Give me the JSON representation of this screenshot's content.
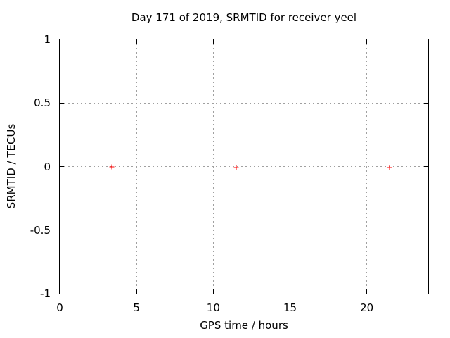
{
  "figure": {
    "background": "#ffffff"
  },
  "chart_data": {
    "type": "scatter",
    "title": "Day 171 of 2019, SRMTID for receiver yeel",
    "xlabel": "GPS time / hours",
    "ylabel": "SRMTID / TECUs",
    "xlim": [
      0,
      24
    ],
    "ylim": [
      -1,
      1
    ],
    "x_ticks": [
      0,
      5,
      10,
      15,
      20
    ],
    "x_tick_labels": [
      "0",
      "5",
      "10",
      "15",
      "20"
    ],
    "y_ticks": [
      1,
      0.5,
      0,
      -0.5,
      -1
    ],
    "y_tick_labels": [
      "1",
      "0.5",
      "0",
      "-0.5",
      "-1"
    ],
    "grid": true,
    "tick_style": "inward-mirrored",
    "legend_position": "none",
    "colors": {
      "marker": "#ff0000",
      "grid": "#a0a0a0",
      "axis": "#000000",
      "background": "#ffffff"
    },
    "series": [
      {
        "name": "SRMTID",
        "marker": "plus",
        "color": "#ff0000",
        "points": [
          {
            "x": 3.4,
            "y": 0.0
          },
          {
            "x": 11.5,
            "y": -0.01
          },
          {
            "x": 21.5,
            "y": -0.01
          }
        ]
      }
    ]
  }
}
